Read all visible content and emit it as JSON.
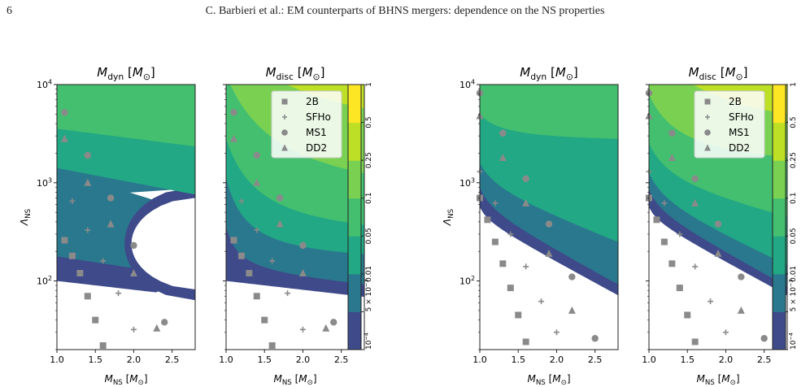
{
  "header": {
    "page_number": "6",
    "running_head": "C. Barbieri et al.: EM counterparts of BHNS mergers: dependence on the NS properties"
  },
  "figure": {
    "panel_titles": {
      "dyn": "M_dyn [M_⊙]",
      "disc": "M_disc [M_⊙]"
    },
    "axis_labels": {
      "y": "Λ_NS",
      "x": "M_NS [M_⊙]"
    },
    "x_ticks": [
      "1.0",
      "1.5",
      "2.0",
      "2.5"
    ],
    "y_ticks": [
      "10^2",
      "10^3",
      "10^4"
    ],
    "colorbar_ticks": [
      "10^-4",
      "5 × 10^-3",
      "0.01",
      "0.05",
      "0.1",
      "0.25",
      "0.5",
      "1"
    ],
    "legend": [
      {
        "label": "2B",
        "marker": "square"
      },
      {
        "label": "SFHo",
        "marker": "plus"
      },
      {
        "label": "MS1",
        "marker": "circle"
      },
      {
        "label": "DD2",
        "marker": "triangle"
      }
    ],
    "colors": {
      "levels": [
        "#3e4a89",
        "#2a788e",
        "#22a884",
        "#44bf70",
        "#7ad151",
        "#bddf26",
        "#fde725"
      ],
      "marker": "#8a8a8a"
    }
  },
  "chart_data": [
    {
      "type": "heatmap",
      "title": "M_dyn [M_⊙]",
      "xlabel": "M_NS [M_⊙]",
      "ylabel": "Λ_NS",
      "xlim": [
        1.0,
        2.8
      ],
      "ylim": [
        20,
        10000
      ],
      "y_scale": "log",
      "levels": [
        0.0001,
        0.005,
        0.01,
        0.05,
        0.1,
        0.25,
        0.5,
        1
      ],
      "series": [
        {
          "name": "2B",
          "x": [
            1.1,
            1.2,
            1.3,
            1.4,
            1.5,
            1.6
          ],
          "y": [
            260,
            180,
            120,
            70,
            40,
            22
          ]
        },
        {
          "name": "SFHo",
          "x": [
            1.2,
            1.4,
            1.6,
            1.8,
            2.0
          ],
          "y": [
            650,
            330,
            160,
            75,
            32
          ]
        },
        {
          "name": "MS1",
          "x": [
            1.1,
            1.4,
            1.7,
            2.0,
            2.4
          ],
          "y": [
            5200,
            1900,
            700,
            230,
            38
          ]
        },
        {
          "name": "DD2",
          "x": [
            1.1,
            1.4,
            1.7,
            2.0,
            2.3
          ],
          "y": [
            2800,
            1000,
            380,
            120,
            33
          ]
        }
      ]
    },
    {
      "type": "heatmap",
      "title": "M_disc [M_⊙]",
      "xlabel": "M_NS [M_⊙]",
      "xlim": [
        1.0,
        2.8
      ],
      "ylim": [
        20,
        10000
      ],
      "y_scale": "log",
      "levels": [
        0.0001,
        0.005,
        0.01,
        0.05,
        0.1,
        0.25,
        0.5,
        1
      ],
      "series": [
        {
          "name": "2B",
          "x": [
            1.1,
            1.2,
            1.3,
            1.4,
            1.5,
            1.6
          ],
          "y": [
            260,
            180,
            120,
            70,
            40,
            22
          ]
        },
        {
          "name": "SFHo",
          "x": [
            1.2,
            1.4,
            1.6,
            1.8,
            2.0
          ],
          "y": [
            650,
            330,
            160,
            75,
            32
          ]
        },
        {
          "name": "MS1",
          "x": [
            1.1,
            1.4,
            1.7,
            2.0,
            2.4
          ],
          "y": [
            5200,
            1900,
            700,
            230,
            38
          ]
        },
        {
          "name": "DD2",
          "x": [
            1.1,
            1.4,
            1.7,
            2.0,
            2.3
          ],
          "y": [
            2800,
            1000,
            380,
            120,
            33
          ]
        }
      ]
    },
    {
      "type": "heatmap",
      "title": "M_dyn [M_⊙]",
      "xlabel": "M_NS [M_⊙]",
      "ylabel": "Λ_NS",
      "xlim": [
        1.0,
        2.8
      ],
      "ylim": [
        20,
        10000
      ],
      "y_scale": "log",
      "levels": [
        0.0001,
        0.005,
        0.01,
        0.05,
        0.1,
        0.25,
        0.5,
        1
      ],
      "series": [
        {
          "name": "2B",
          "x": [
            1.0,
            1.1,
            1.2,
            1.3,
            1.4,
            1.5,
            1.6
          ],
          "y": [
            700,
            420,
            250,
            150,
            85,
            45,
            24
          ]
        },
        {
          "name": "SFHo",
          "x": [
            1.0,
            1.2,
            1.4,
            1.6,
            1.8,
            2.0
          ],
          "y": [
            1300,
            620,
            300,
            140,
            62,
            30
          ]
        },
        {
          "name": "MS1",
          "x": [
            1.0,
            1.3,
            1.6,
            1.9,
            2.2,
            2.5
          ],
          "y": [
            8200,
            3200,
            1100,
            380,
            110,
            26
          ]
        },
        {
          "name": "DD2",
          "x": [
            1.0,
            1.3,
            1.6,
            1.9,
            2.2
          ],
          "y": [
            4800,
            1800,
            620,
            190,
            50
          ]
        }
      ]
    },
    {
      "type": "heatmap",
      "title": "M_disc [M_⊙]",
      "xlabel": "M_NS [M_⊙]",
      "xlim": [
        1.0,
        2.8
      ],
      "ylim": [
        20,
        10000
      ],
      "y_scale": "log",
      "levels": [
        0.0001,
        0.005,
        0.01,
        0.05,
        0.1,
        0.25,
        0.5,
        1
      ],
      "series": [
        {
          "name": "2B",
          "x": [
            1.0,
            1.1,
            1.2,
            1.3,
            1.4,
            1.5,
            1.6
          ],
          "y": [
            700,
            420,
            250,
            150,
            85,
            45,
            24
          ]
        },
        {
          "name": "SFHo",
          "x": [
            1.0,
            1.2,
            1.4,
            1.6,
            1.8,
            2.0
          ],
          "y": [
            1300,
            620,
            300,
            140,
            62,
            30
          ]
        },
        {
          "name": "MS1",
          "x": [
            1.0,
            1.3,
            1.6,
            1.9,
            2.2,
            2.5
          ],
          "y": [
            8200,
            3200,
            1100,
            380,
            110,
            26
          ]
        },
        {
          "name": "DD2",
          "x": [
            1.0,
            1.3,
            1.6,
            1.9,
            2.2
          ],
          "y": [
            4800,
            1800,
            620,
            190,
            50
          ]
        }
      ]
    }
  ]
}
